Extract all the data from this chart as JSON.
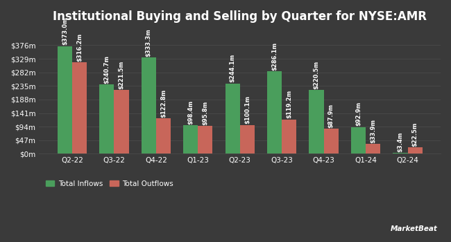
{
  "title": "Institutional Buying and Selling by Quarter for NYSE:AMR",
  "quarters": [
    "Q2-22",
    "Q3-22",
    "Q4-22",
    "Q1-23",
    "Q2-23",
    "Q3-23",
    "Q4-23",
    "Q1-24",
    "Q2-24"
  ],
  "inflows": [
    373.0,
    240.7,
    333.3,
    98.4,
    244.1,
    286.1,
    220.5,
    92.9,
    3.4
  ],
  "outflows": [
    316.2,
    221.5,
    122.8,
    95.8,
    100.1,
    119.2,
    87.9,
    33.9,
    22.5
  ],
  "inflow_labels": [
    "$373.0m",
    "$316.2m",
    "$240.7m",
    "$221.5m",
    "$333.3m",
    "$122.8m",
    "$98.4m",
    "$95.8m",
    "$244.1m",
    "$100.1m",
    "$286.1m",
    "$119.2m",
    "$220.5m",
    "$87.9m",
    "$92.9m",
    "$33.9m",
    "$3.4m",
    "$22.5m"
  ],
  "inflow_color": "#4a9e5c",
  "outflow_color": "#c8665a",
  "background_color": "#3a3a3a",
  "text_color": "#ffffff",
  "grid_color": "#4a4a4a",
  "yticks": [
    0,
    47,
    94,
    141,
    188,
    235,
    282,
    329,
    376
  ],
  "ytick_labels": [
    "$0m",
    "$47m",
    "$94m",
    "$141m",
    "$188m",
    "$235m",
    "$282m",
    "$329m",
    "$376m"
  ],
  "legend_inflow": "Total Inflows",
  "legend_outflow": "Total Outflows",
  "bar_width": 0.35,
  "title_fontsize": 12,
  "label_fontsize": 6.0,
  "tick_fontsize": 7.5,
  "legend_fontsize": 7.5,
  "ylim_max": 430
}
